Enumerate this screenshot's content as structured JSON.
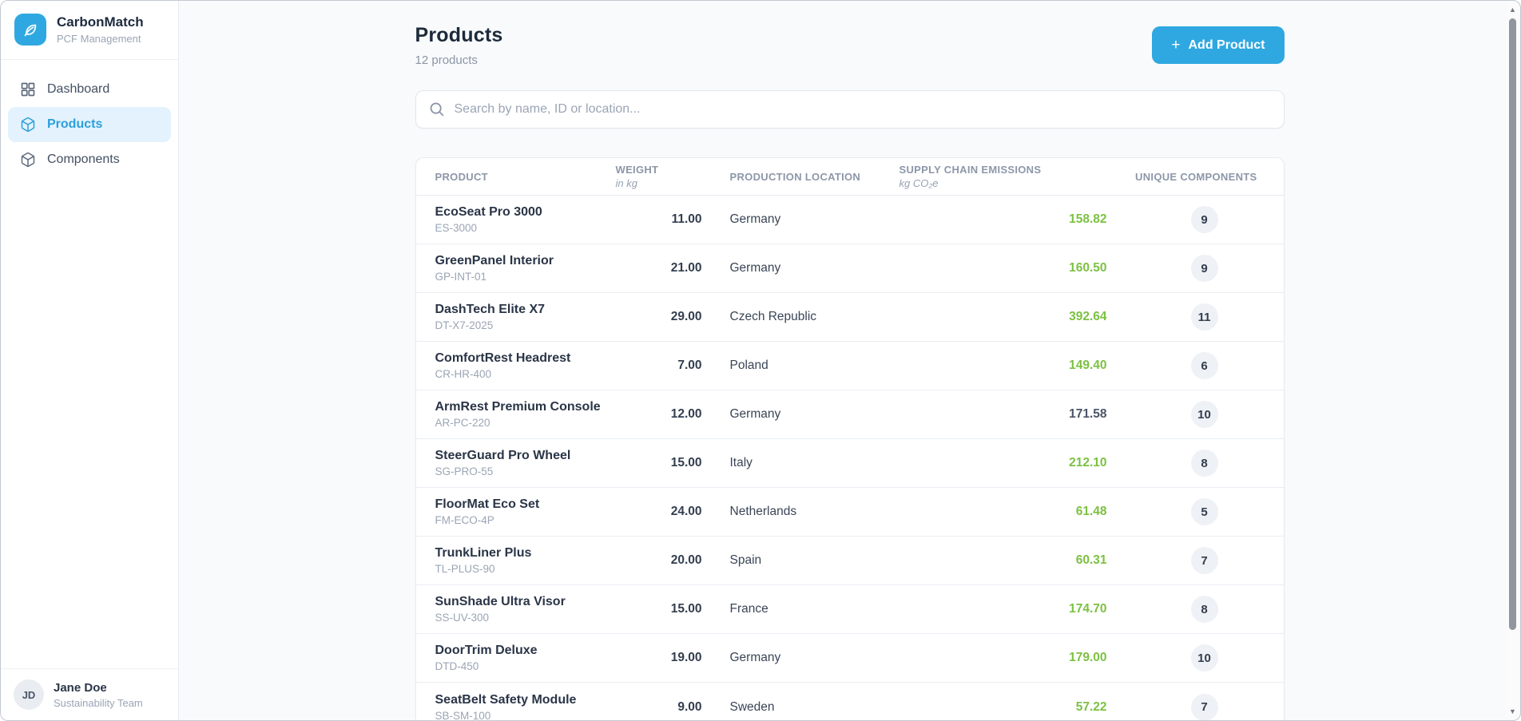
{
  "colors": {
    "accent": "#2fa8e1",
    "accent_light_bg": "#e3f2fc",
    "green": "#7cc142",
    "dark_value": "#4a5568"
  },
  "sidebar": {
    "brand": {
      "name": "CarbonMatch",
      "subtitle": "PCF Management",
      "logo_icon": "leaf-icon"
    },
    "items": [
      {
        "label": "Dashboard",
        "icon": "grid-icon",
        "active": false
      },
      {
        "label": "Products",
        "icon": "cube-icon",
        "active": true
      },
      {
        "label": "Components",
        "icon": "cube-icon",
        "active": false
      }
    ],
    "user": {
      "initials": "JD",
      "name": "Jane Doe",
      "role": "Sustainability Team"
    }
  },
  "header": {
    "title": "Products",
    "count_label": "12 products",
    "add_button_label": "Add Product",
    "add_button_icon": "plus-icon"
  },
  "search": {
    "placeholder": "Search by name, ID or location...",
    "icon": "search-icon"
  },
  "table": {
    "columns": [
      {
        "label": "PRODUCT",
        "sublabel": ""
      },
      {
        "label": "WEIGHT",
        "sublabel": "in kg"
      },
      {
        "label": "PRODUCTION LOCATION",
        "sublabel": ""
      },
      {
        "label": "SUPPLY CHAIN EMISSIONS",
        "sublabel": "kg CO₂e"
      },
      {
        "label": "UNIQUE COMPONENTS",
        "sublabel": ""
      }
    ],
    "rows": [
      {
        "name": "EcoSeat Pro 3000",
        "sku": "ES-3000",
        "weight": "11.00",
        "location": "Germany",
        "emissions": "158.82",
        "emissions_color": "green",
        "components": "9"
      },
      {
        "name": "GreenPanel Interior",
        "sku": "GP-INT-01",
        "weight": "21.00",
        "location": "Germany",
        "emissions": "160.50",
        "emissions_color": "green",
        "components": "9"
      },
      {
        "name": "DashTech Elite X7",
        "sku": "DT-X7-2025",
        "weight": "29.00",
        "location": "Czech Republic",
        "emissions": "392.64",
        "emissions_color": "green",
        "components": "11"
      },
      {
        "name": "ComfortRest Headrest",
        "sku": "CR-HR-400",
        "weight": "7.00",
        "location": "Poland",
        "emissions": "149.40",
        "emissions_color": "green",
        "components": "6"
      },
      {
        "name": "ArmRest Premium Console",
        "sku": "AR-PC-220",
        "weight": "12.00",
        "location": "Germany",
        "emissions": "171.58",
        "emissions_color": "dark",
        "components": "10"
      },
      {
        "name": "SteerGuard Pro Wheel",
        "sku": "SG-PRO-55",
        "weight": "15.00",
        "location": "Italy",
        "emissions": "212.10",
        "emissions_color": "green",
        "components": "8"
      },
      {
        "name": "FloorMat Eco Set",
        "sku": "FM-ECO-4P",
        "weight": "24.00",
        "location": "Netherlands",
        "emissions": "61.48",
        "emissions_color": "green",
        "components": "5"
      },
      {
        "name": "TrunkLiner Plus",
        "sku": "TL-PLUS-90",
        "weight": "20.00",
        "location": "Spain",
        "emissions": "60.31",
        "emissions_color": "green",
        "components": "7"
      },
      {
        "name": "SunShade Ultra Visor",
        "sku": "SS-UV-300",
        "weight": "15.00",
        "location": "France",
        "emissions": "174.70",
        "emissions_color": "green",
        "components": "8"
      },
      {
        "name": "DoorTrim Deluxe",
        "sku": "DTD-450",
        "weight": "19.00",
        "location": "Germany",
        "emissions": "179.00",
        "emissions_color": "green",
        "components": "10"
      },
      {
        "name": "SeatBelt Safety Module",
        "sku": "SB-SM-100",
        "weight": "9.00",
        "location": "Sweden",
        "emissions": "57.22",
        "emissions_color": "green",
        "components": "7"
      }
    ]
  }
}
